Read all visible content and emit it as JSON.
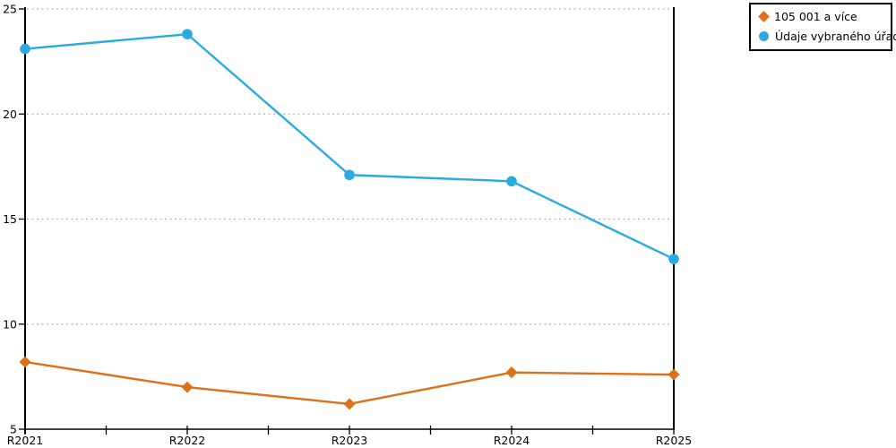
{
  "chart_data": {
    "type": "line",
    "categories": [
      "R2021",
      "R2022",
      "R2023",
      "R2024",
      "R2025"
    ],
    "series": [
      {
        "name": "105 001 a více",
        "values": [
          8.2,
          7.0,
          6.2,
          7.7,
          7.6
        ],
        "color": "#DD7018",
        "marker": "diamond"
      },
      {
        "name": "Údaje vybraného úřadu",
        "values": [
          23.1,
          23.8,
          17.1,
          16.8,
          13.1
        ],
        "color": "#29ABE2",
        "marker": "circle"
      }
    ],
    "title": "",
    "xlabel": "",
    "ylabel": "",
    "ylim": [
      5,
      25
    ],
    "yticks": [
      5,
      10,
      15,
      20,
      25
    ],
    "grid": "horizontal-dotted",
    "gridline_color": "#B3B3B3",
    "axis_color": "#000000",
    "legend_position": "top-right"
  }
}
